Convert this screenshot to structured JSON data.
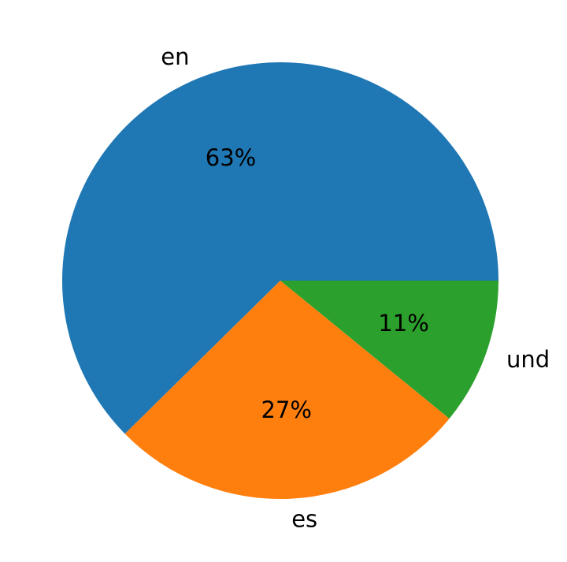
{
  "chart_data": {
    "type": "pie",
    "categories": [
      "en",
      "es",
      "und"
    ],
    "values": [
      63,
      27,
      11
    ],
    "value_labels": [
      "63%",
      "27%",
      "11%"
    ],
    "colors": [
      "#1f77b4",
      "#ff7f0e",
      "#2ca02c"
    ],
    "start_angle": 0,
    "direction": "counterclockwise"
  }
}
